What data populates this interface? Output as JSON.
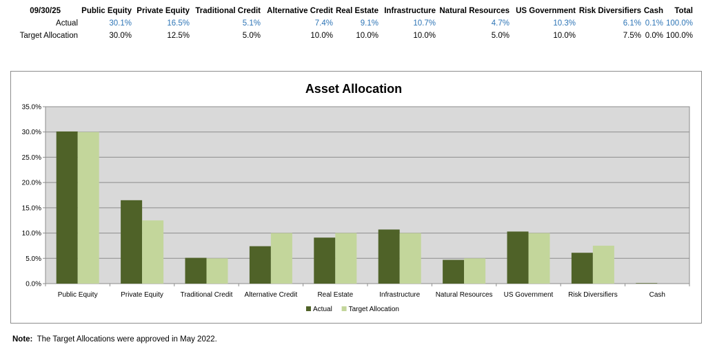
{
  "table": {
    "date_label": "09/30/25",
    "columns": [
      "Public Equity",
      "Private Equity",
      "Traditional Credit",
      "Alternative Credit",
      "Real Estate",
      "Infrastructure",
      "Natural Resources",
      "US Government",
      "Risk Diversifiers",
      "Cash",
      "Total"
    ],
    "rows": [
      {
        "label": "Actual",
        "values": [
          "30.1%",
          "16.5%",
          "5.1%",
          "7.4%",
          "9.1%",
          "10.7%",
          "4.7%",
          "10.3%",
          "6.1%",
          "0.1%",
          "100.0%"
        ]
      },
      {
        "label": "Target Allocation",
        "values": [
          "30.0%",
          "12.5%",
          "5.0%",
          "10.0%",
          "10.0%",
          "10.0%",
          "5.0%",
          "10.0%",
          "7.5%",
          "0.0%",
          "100.0%"
        ]
      }
    ]
  },
  "colors": {
    "actual_text": "#2e75b6",
    "actual_bar": "#4f6228",
    "target_bar": "#c3d69b",
    "plot_bg": "#d9d9d9"
  },
  "chart_data": {
    "type": "bar",
    "title": "Asset Allocation",
    "categories": [
      "Public Equity",
      "Private Equity",
      "Traditional Credit",
      "Alternative Credit",
      "Real Estate",
      "Infrastructure",
      "Natural Resources",
      "US Government",
      "Risk Diversifiers",
      "Cash"
    ],
    "series": [
      {
        "name": "Actual",
        "values": [
          30.1,
          16.5,
          5.1,
          7.4,
          9.1,
          10.7,
          4.7,
          10.3,
          6.1,
          0.1
        ]
      },
      {
        "name": "Target Allocation",
        "values": [
          30.0,
          12.5,
          5.0,
          10.0,
          10.0,
          10.0,
          5.0,
          10.0,
          7.5,
          0.0
        ]
      }
    ],
    "ylim": [
      0,
      35
    ],
    "yticks": [
      "0.0%",
      "5.0%",
      "10.0%",
      "15.0%",
      "20.0%",
      "25.0%",
      "30.0%",
      "35.0%"
    ],
    "grid": true,
    "legend": "bottom"
  },
  "note": {
    "label": "Note:",
    "text": "The Target Allocations were approved in May 2022."
  }
}
